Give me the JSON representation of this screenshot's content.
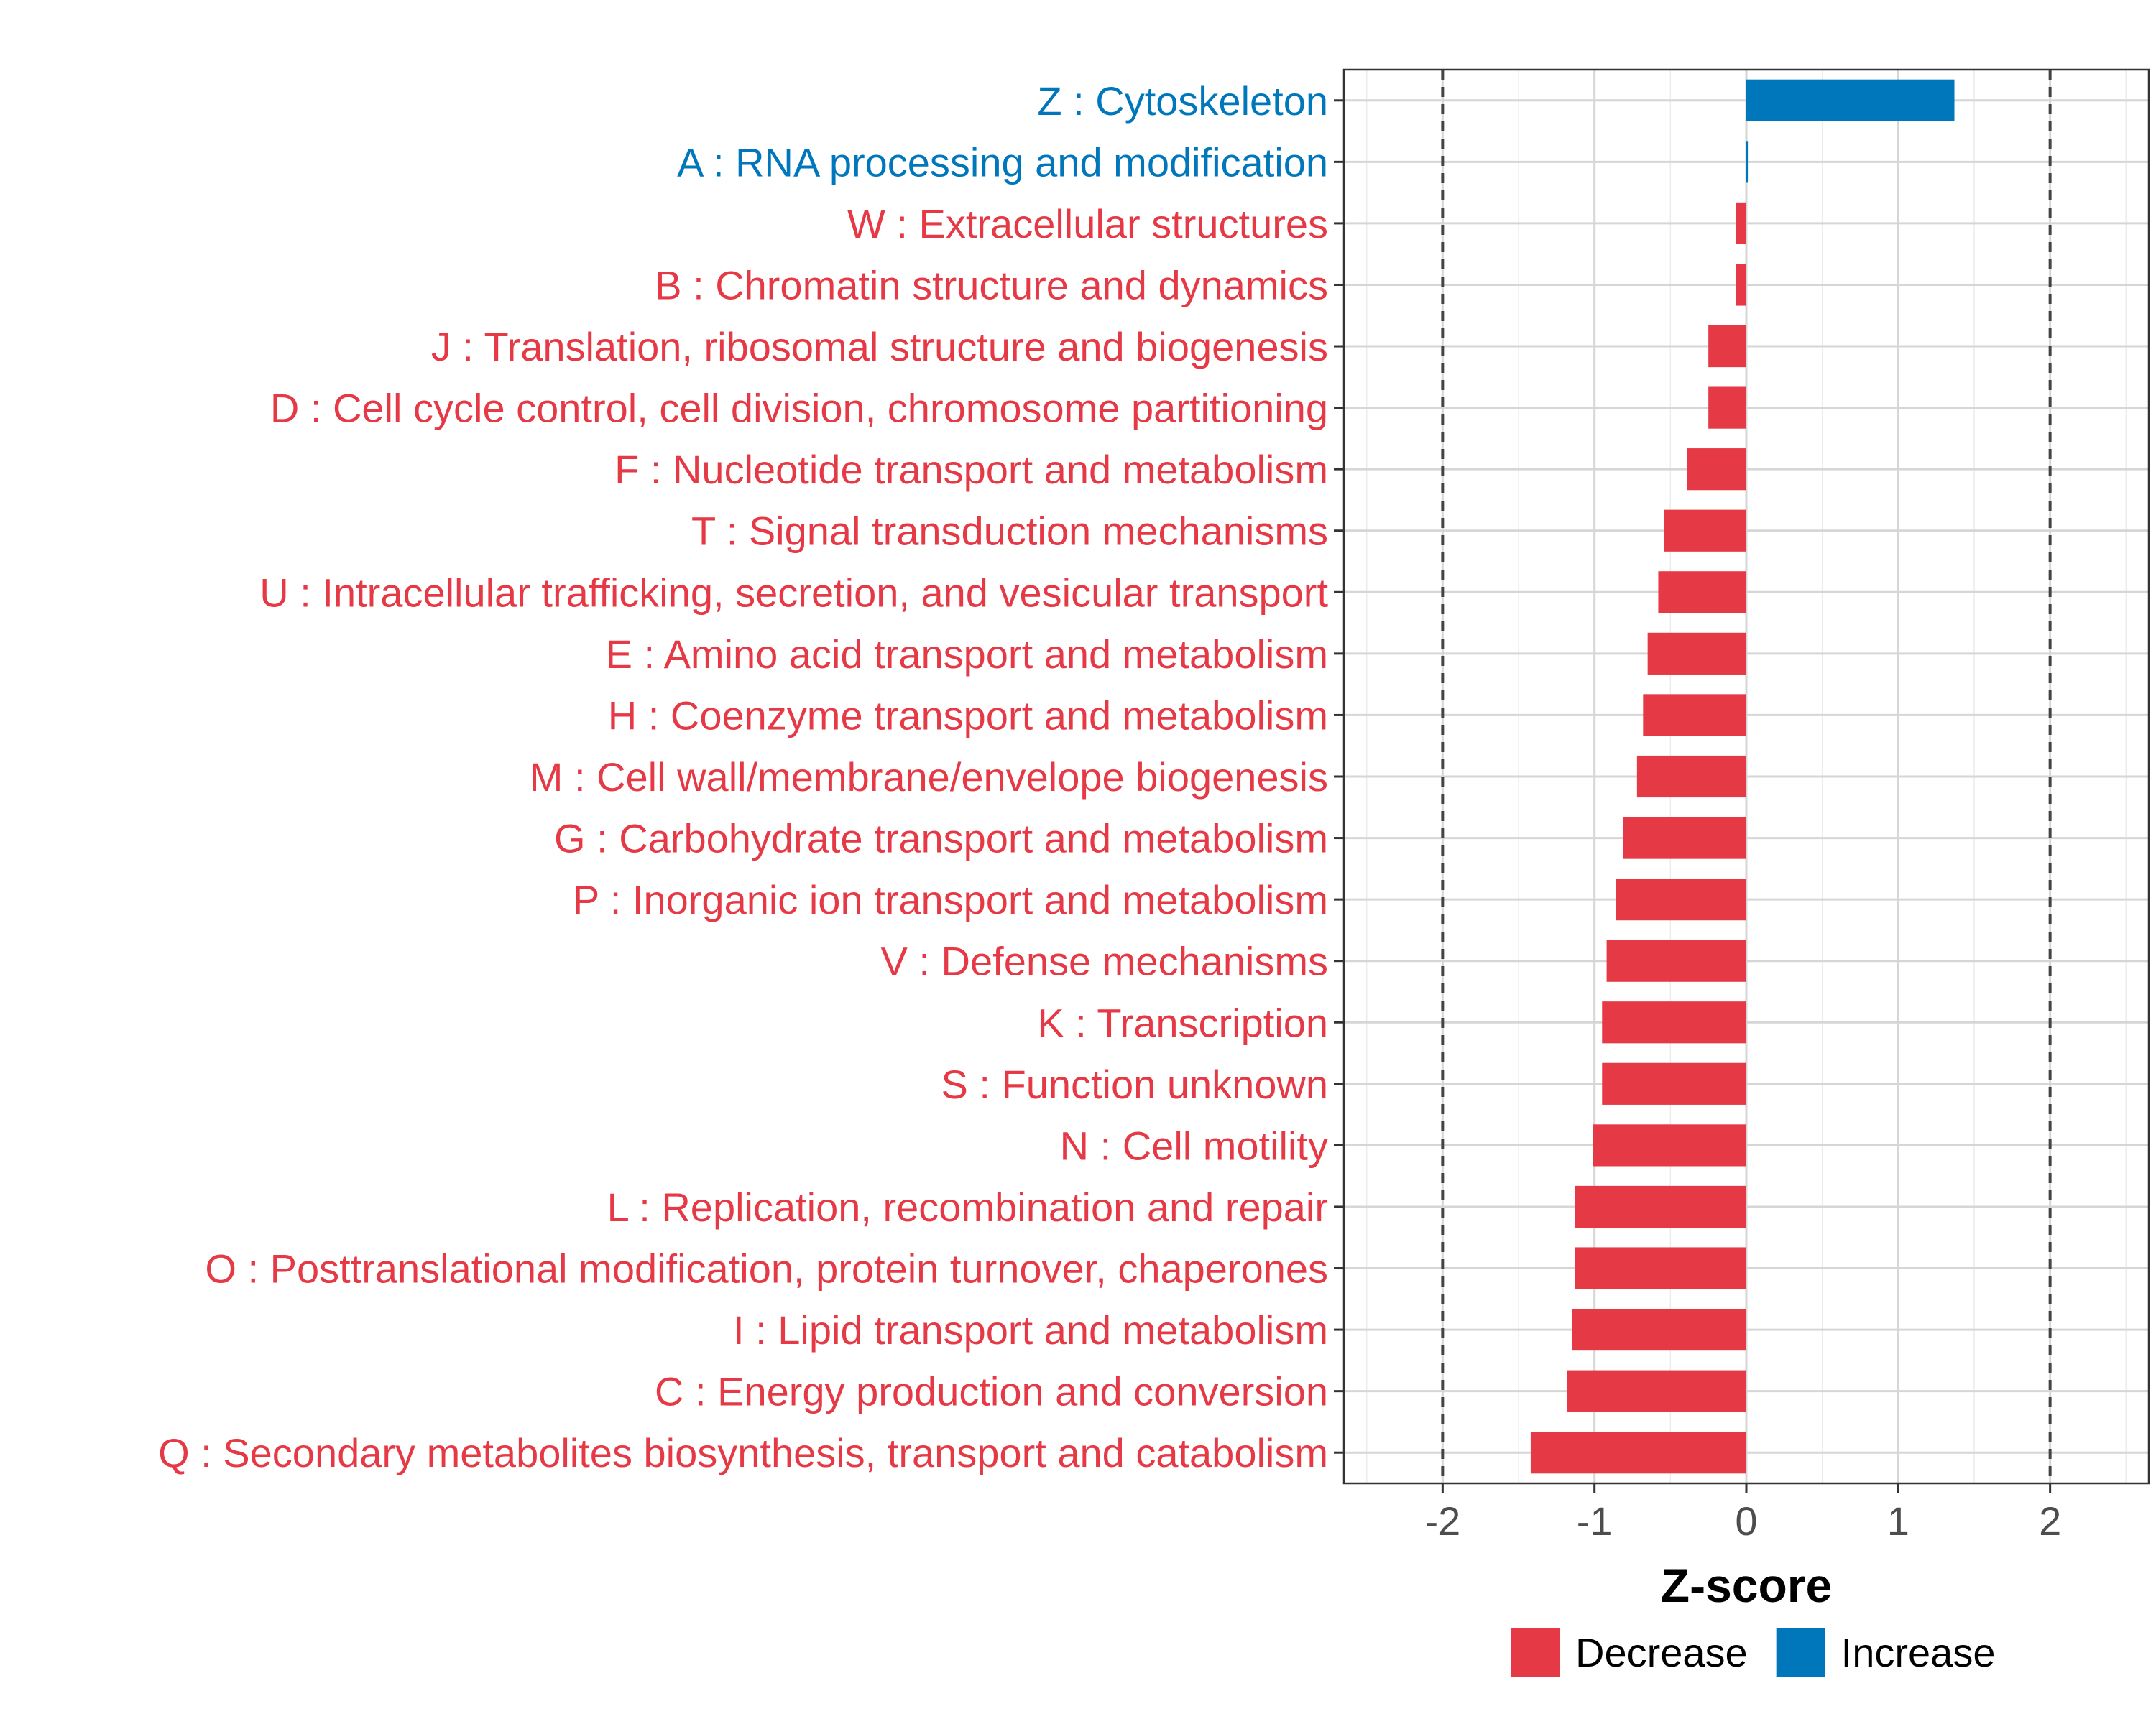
{
  "chart_data": {
    "type": "bar",
    "orientation": "horizontal",
    "title": "",
    "xlabel": "Z-score",
    "ylabel": "",
    "xlim": [
      -2.65,
      2.65
    ],
    "xticks": [
      -2,
      -1,
      0,
      1,
      2
    ],
    "xtick_labels": [
      "-2",
      "-1",
      "0",
      "1",
      "2"
    ],
    "reference_lines": [
      -2,
      2
    ],
    "grid": true,
    "categories": [
      "Z : Cytoskeleton",
      "A : RNA processing and modification",
      "W : Extracellular structures",
      "B : Chromatin structure and dynamics",
      "J : Translation, ribosomal structure and biogenesis",
      "D : Cell cycle control, cell division, chromosome partitioning",
      "F : Nucleotide transport and metabolism",
      "T : Signal transduction mechanisms",
      "U : Intracellular trafficking, secretion, and vesicular transport",
      "E : Amino acid transport and metabolism",
      "H : Coenzyme transport and metabolism",
      "M : Cell wall/membrane/envelope biogenesis",
      "G : Carbohydrate transport and metabolism",
      "P : Inorganic ion transport and metabolism",
      "V : Defense mechanisms",
      "K : Transcription",
      "S : Function unknown",
      "N : Cell motility",
      "L : Replication, recombination and repair",
      "O : Posttranslational modification, protein turnover, chaperones",
      "I : Lipid transport and metabolism",
      "C : Energy production and conversion",
      "Q : Secondary metabolites biosynthesis, transport and catabolism"
    ],
    "values": [
      1.37,
      0.01,
      -0.07,
      -0.07,
      -0.25,
      -0.25,
      -0.39,
      -0.54,
      -0.58,
      -0.65,
      -0.68,
      -0.72,
      -0.81,
      -0.86,
      -0.92,
      -0.95,
      -0.95,
      -1.01,
      -1.13,
      -1.13,
      -1.15,
      -1.18,
      -1.42
    ],
    "groups": [
      "Increase",
      "Increase",
      "Decrease",
      "Decrease",
      "Decrease",
      "Decrease",
      "Decrease",
      "Decrease",
      "Decrease",
      "Decrease",
      "Decrease",
      "Decrease",
      "Decrease",
      "Decrease",
      "Decrease",
      "Decrease",
      "Decrease",
      "Decrease",
      "Decrease",
      "Decrease",
      "Decrease",
      "Decrease",
      "Decrease"
    ],
    "legend": {
      "position": "bottom",
      "entries": [
        {
          "name": "Decrease",
          "color": "#E63946"
        },
        {
          "name": "Increase",
          "color": "#0077BB"
        }
      ]
    },
    "colors": {
      "Decrease": "#E63946",
      "Increase": "#0077BB"
    }
  }
}
